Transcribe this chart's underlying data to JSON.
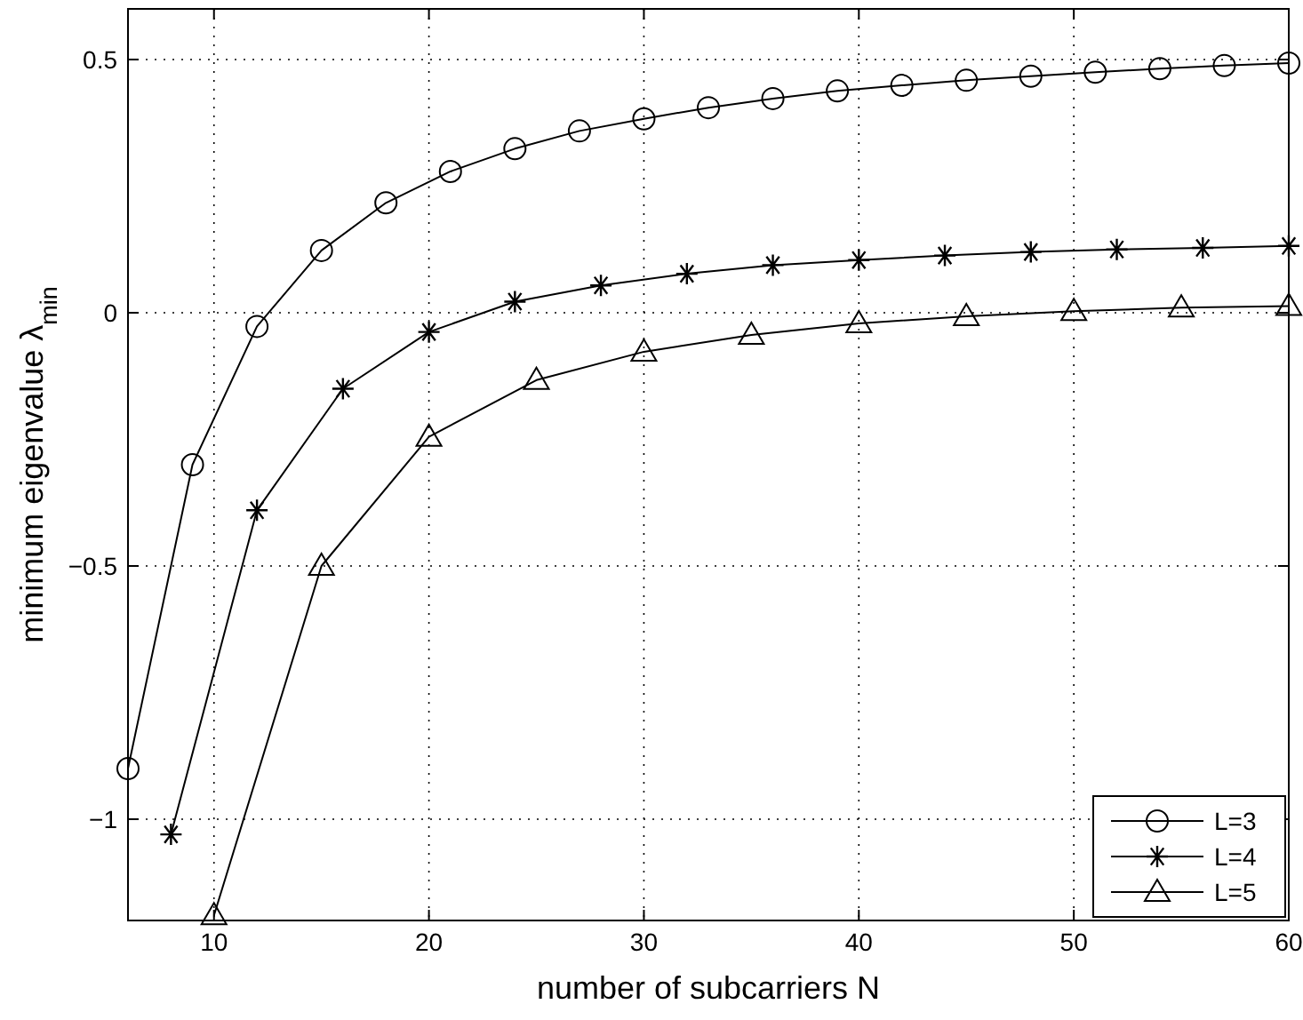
{
  "chart_data": {
    "type": "line",
    "xlabel": "number of subcarriers N",
    "ylabel": "minimum eigenvalue λ$_{min}$",
    "xlim": [
      6,
      60
    ],
    "ylim": [
      -1.2,
      0.6
    ],
    "xticks": [
      10,
      20,
      30,
      40,
      50,
      60
    ],
    "yticks": [
      -1,
      -0.5,
      0,
      0.5
    ],
    "grid": true,
    "legend": "bottom right",
    "line_style": "solid",
    "series": [
      {
        "name": "L=3",
        "color": "#000000",
        "marker": "circle",
        "x": [
          6,
          9,
          12,
          15,
          18,
          21,
          24,
          27,
          30,
          33,
          36,
          39,
          42,
          45,
          48,
          51,
          54,
          57,
          60
        ],
        "values": [
          -0.9,
          -0.3,
          -0.027,
          0.123,
          0.217,
          0.279,
          0.324,
          0.359,
          0.383,
          0.405,
          0.423,
          0.438,
          0.449,
          0.459,
          0.467,
          0.475,
          0.482,
          0.488,
          0.493
        ]
      },
      {
        "name": "L=4",
        "color": "#000000",
        "marker": "cross",
        "x": [
          8,
          12,
          16,
          20,
          24,
          28,
          32,
          36,
          40,
          44,
          48,
          52,
          56,
          60
        ],
        "values": [
          -1.03,
          -0.39,
          -0.15,
          -0.038,
          0.022,
          0.054,
          0.077,
          0.094,
          0.104,
          0.113,
          0.12,
          0.125,
          0.128,
          0.132
        ]
      },
      {
        "name": "L=5",
        "color": "#000000",
        "marker": "triangle",
        "x": [
          10,
          15,
          20,
          25,
          30,
          35,
          40,
          45,
          50,
          55,
          60
        ],
        "values": [
          -1.19,
          -0.5,
          -0.245,
          -0.133,
          -0.077,
          -0.044,
          -0.021,
          -0.007,
          0.003,
          0.01,
          0.013
        ]
      }
    ]
  }
}
